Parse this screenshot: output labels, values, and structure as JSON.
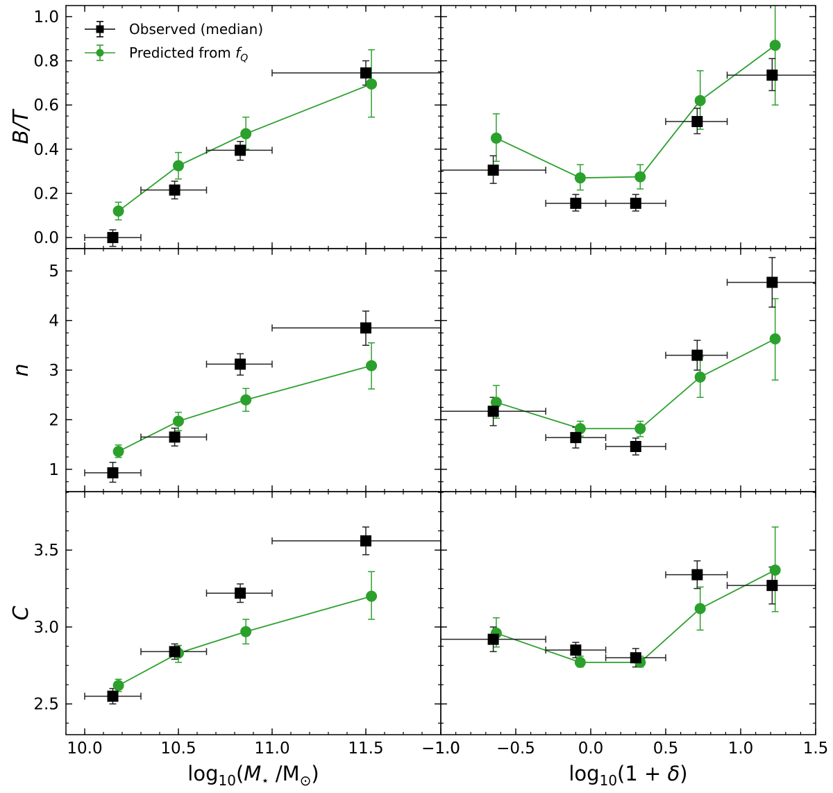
{
  "figure": {
    "legend": {
      "observed_label": "Observed (median)",
      "predicted_label_prefix": "Predicted from ",
      "predicted_label_symbol": "f",
      "predicted_label_sub": "Q",
      "placement": "top-left of first panel"
    },
    "colors": {
      "observed": "#000000",
      "predicted": "#2ca02c"
    },
    "row_labels": [
      {
        "main": "B/T"
      },
      {
        "main": "n"
      },
      {
        "main": "C"
      }
    ],
    "xlabels": [
      {
        "pre": "log",
        "sub": "10",
        "mid_open": "(",
        "m": "M",
        "star": "⋆",
        "slash": " /M",
        "sun": "⊙",
        "close": ")"
      },
      {
        "pre": "log",
        "sub": "10",
        "rest_a": "(1 + ",
        "delta": "δ",
        "rest_b": ")"
      }
    ],
    "xticks_left": [
      "10.0",
      "10.5",
      "11.0",
      "11.5"
    ],
    "xticks_right": [
      "−1.0",
      "−0.5",
      "0.0",
      "0.5",
      "1.0",
      "1.5"
    ]
  },
  "chart_data": [
    {
      "type": "scatter",
      "panel": "top-left",
      "ylabel": "B/T",
      "xlabel": "log10(M*/Msun)",
      "xlim": [
        9.9,
        11.9
      ],
      "ylim": [
        -0.05,
        1.05
      ],
      "yticks": [
        "0.0",
        "0.2",
        "0.4",
        "0.6",
        "0.8",
        "1.0"
      ],
      "yticks_values": [
        0.0,
        0.2,
        0.4,
        0.6,
        0.8,
        1.0
      ],
      "series": [
        {
          "name": "Observed (median)",
          "x": [
            10.15,
            10.48,
            10.83,
            11.5
          ],
          "y": [
            0.0,
            0.215,
            0.395,
            0.745
          ],
          "xerr_lo": [
            10.0,
            10.3,
            10.65,
            11.0
          ],
          "xerr_hi": [
            10.3,
            10.65,
            11.0,
            11.9
          ],
          "yerr_lo": [
            -0.04,
            0.175,
            0.35,
            0.69
          ],
          "yerr_hi": [
            0.035,
            0.255,
            0.435,
            0.8
          ]
        },
        {
          "name": "Predicted from fQ",
          "x": [
            10.18,
            10.5,
            10.86,
            11.53
          ],
          "y": [
            0.12,
            0.325,
            0.47,
            0.695
          ],
          "yerr_lo": [
            0.08,
            0.265,
            0.4,
            0.545
          ],
          "yerr_hi": [
            0.16,
            0.385,
            0.545,
            0.85
          ]
        }
      ]
    },
    {
      "type": "scatter",
      "panel": "top-right",
      "ylabel": "B/T",
      "xlabel": "log10(1+delta)",
      "xlim": [
        -1.0,
        1.5
      ],
      "ylim": [
        -0.05,
        1.05
      ],
      "yticks_values": [
        0.0,
        0.2,
        0.4,
        0.6,
        0.8,
        1.0
      ],
      "series": [
        {
          "name": "Observed (median)",
          "x": [
            -0.65,
            -0.1,
            0.3,
            0.71,
            1.21
          ],
          "y": [
            0.305,
            0.155,
            0.155,
            0.525,
            0.735
          ],
          "xerr_lo": [
            -1.0,
            -0.3,
            0.1,
            0.5,
            0.91
          ],
          "xerr_hi": [
            -0.3,
            0.1,
            0.5,
            0.91,
            1.5
          ],
          "yerr_lo": [
            0.245,
            0.12,
            0.12,
            0.47,
            0.665
          ],
          "yerr_hi": [
            0.37,
            0.195,
            0.195,
            0.585,
            0.81
          ]
        },
        {
          "name": "Predicted from fQ",
          "x": [
            -0.63,
            -0.07,
            0.33,
            0.73,
            1.23
          ],
          "y": [
            0.45,
            0.27,
            0.275,
            0.62,
            0.87
          ],
          "yerr_lo": [
            0.345,
            0.215,
            0.22,
            0.49,
            0.6
          ],
          "yerr_hi": [
            0.56,
            0.33,
            0.33,
            0.755,
            1.05
          ]
        }
      ]
    },
    {
      "type": "scatter",
      "panel": "middle-left",
      "ylabel": "n",
      "xlim": [
        9.9,
        11.9
      ],
      "ylim": [
        0.55,
        5.45
      ],
      "yticks": [
        "1",
        "2",
        "3",
        "4",
        "5"
      ],
      "yticks_values": [
        1,
        2,
        3,
        4,
        5
      ],
      "series": [
        {
          "name": "Observed (median)",
          "x": [
            10.15,
            10.48,
            10.83,
            11.5
          ],
          "y": [
            0.93,
            1.65,
            3.12,
            3.85
          ],
          "xerr_lo": [
            10.0,
            10.3,
            10.65,
            11.0
          ],
          "xerr_hi": [
            10.3,
            10.65,
            11.0,
            11.9
          ],
          "yerr_lo": [
            0.74,
            1.47,
            2.9,
            3.5
          ],
          "yerr_hi": [
            1.14,
            1.83,
            3.33,
            4.19
          ]
        },
        {
          "name": "Predicted from fQ",
          "x": [
            10.18,
            10.5,
            10.86,
            11.53
          ],
          "y": [
            1.36,
            1.97,
            2.4,
            3.09
          ],
          "yerr_lo": [
            1.24,
            1.78,
            2.17,
            2.62
          ],
          "yerr_hi": [
            1.49,
            2.15,
            2.63,
            3.55
          ]
        }
      ]
    },
    {
      "type": "scatter",
      "panel": "middle-right",
      "ylabel": "n",
      "xlim": [
        -1.0,
        1.5
      ],
      "ylim": [
        0.55,
        5.45
      ],
      "yticks_values": [
        1,
        2,
        3,
        4,
        5
      ],
      "series": [
        {
          "name": "Observed (median)",
          "x": [
            -0.65,
            -0.1,
            0.3,
            0.71,
            1.21
          ],
          "y": [
            2.17,
            1.64,
            1.46,
            3.3,
            4.77
          ],
          "xerr_lo": [
            -1.0,
            -0.3,
            0.1,
            0.5,
            0.91
          ],
          "xerr_hi": [
            -0.3,
            0.1,
            0.5,
            0.91,
            1.5
          ],
          "yerr_lo": [
            1.88,
            1.43,
            1.29,
            3.0,
            4.27
          ],
          "yerr_hi": [
            2.45,
            1.85,
            1.63,
            3.6,
            5.27
          ]
        },
        {
          "name": "Predicted from fQ",
          "x": [
            -0.63,
            -0.07,
            0.33,
            0.73,
            1.23
          ],
          "y": [
            2.35,
            1.82,
            1.82,
            2.86,
            3.63
          ],
          "yerr_lo": [
            2.03,
            1.67,
            1.66,
            2.45,
            2.8
          ],
          "yerr_hi": [
            2.69,
            1.97,
            1.97,
            3.27,
            4.44
          ]
        }
      ]
    },
    {
      "type": "scatter",
      "panel": "bottom-left",
      "ylabel": "C",
      "xlim": [
        9.9,
        11.9
      ],
      "ylim": [
        2.3,
        3.88
      ],
      "yticks": [
        "2.5",
        "3.0",
        "3.5"
      ],
      "yticks_values": [
        2.5,
        3.0,
        3.5
      ],
      "series": [
        {
          "name": "Observed (median)",
          "x": [
            10.15,
            10.48,
            10.83,
            11.5
          ],
          "y": [
            2.55,
            2.84,
            3.22,
            3.56
          ],
          "xerr_lo": [
            10.0,
            10.3,
            10.65,
            11.0
          ],
          "xerr_hi": [
            10.3,
            10.65,
            11.0,
            11.9
          ],
          "yerr_lo": [
            2.5,
            2.79,
            3.16,
            3.47
          ],
          "yerr_hi": [
            2.6,
            2.89,
            3.28,
            3.65
          ]
        },
        {
          "name": "Predicted from fQ",
          "x": [
            10.18,
            10.5,
            10.86,
            11.53
          ],
          "y": [
            2.62,
            2.83,
            2.97,
            3.2
          ],
          "yerr_lo": [
            2.58,
            2.77,
            2.89,
            3.05
          ],
          "yerr_hi": [
            2.66,
            2.88,
            3.05,
            3.36
          ]
        }
      ]
    },
    {
      "type": "scatter",
      "panel": "bottom-right",
      "ylabel": "C",
      "xlim": [
        -1.0,
        1.5
      ],
      "ylim": [
        2.3,
        3.88
      ],
      "yticks_values": [
        2.5,
        3.0,
        3.5
      ],
      "series": [
        {
          "name": "Observed (median)",
          "x": [
            -0.65,
            -0.1,
            0.3,
            0.71,
            1.21
          ],
          "y": [
            2.92,
            2.85,
            2.8,
            3.34,
            3.27
          ],
          "xerr_lo": [
            -1.0,
            -0.3,
            0.1,
            0.5,
            0.91
          ],
          "xerr_hi": [
            -0.3,
            0.1,
            0.5,
            0.91,
            1.5
          ],
          "yerr_lo": [
            2.84,
            2.8,
            2.74,
            3.25,
            3.15
          ],
          "yerr_hi": [
            3.0,
            2.9,
            2.86,
            3.43,
            3.39
          ]
        },
        {
          "name": "Predicted from fQ",
          "x": [
            -0.63,
            -0.07,
            0.33,
            0.73,
            1.23
          ],
          "y": [
            2.96,
            2.77,
            2.77,
            3.12,
            3.37
          ],
          "yerr_lo": [
            2.87,
            2.74,
            2.74,
            2.98,
            3.1
          ],
          "yerr_hi": [
            3.06,
            2.81,
            2.81,
            3.26,
            3.65
          ]
        }
      ]
    }
  ]
}
